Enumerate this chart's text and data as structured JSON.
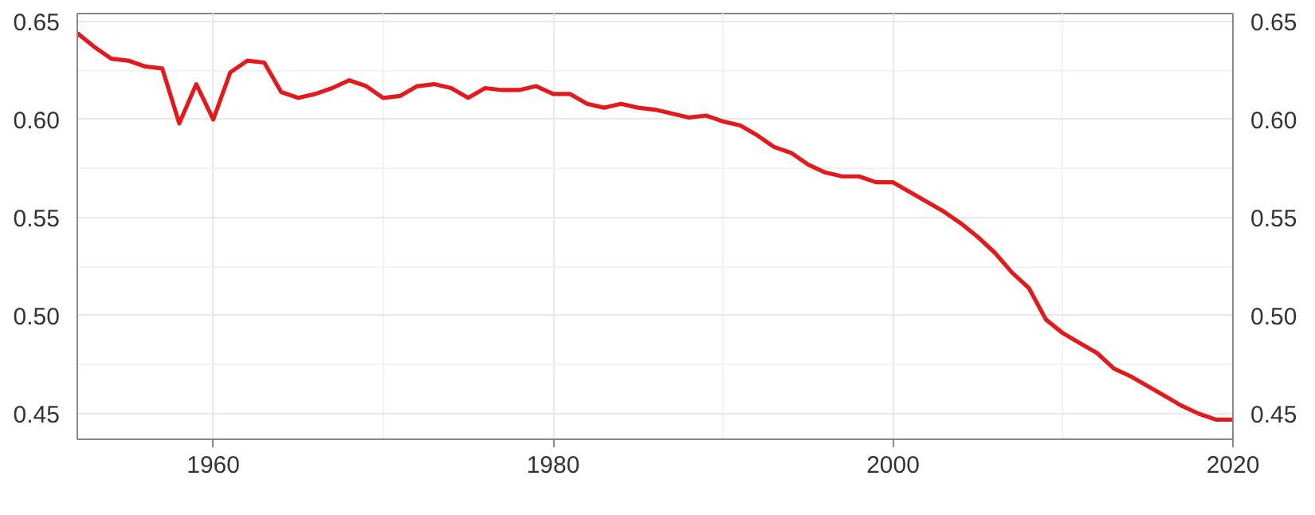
{
  "chart_data": {
    "type": "line",
    "x": [
      1952,
      1953,
      1954,
      1955,
      1956,
      1957,
      1958,
      1959,
      1960,
      1961,
      1962,
      1963,
      1964,
      1965,
      1966,
      1967,
      1968,
      1969,
      1970,
      1971,
      1972,
      1973,
      1974,
      1975,
      1976,
      1977,
      1978,
      1979,
      1980,
      1981,
      1982,
      1983,
      1984,
      1985,
      1986,
      1987,
      1988,
      1989,
      1990,
      1991,
      1992,
      1993,
      1994,
      1995,
      1996,
      1997,
      1998,
      1999,
      2000,
      2001,
      2002,
      2003,
      2004,
      2005,
      2006,
      2007,
      2008,
      2009,
      2010,
      2011,
      2012,
      2013,
      2014,
      2015,
      2016,
      2017,
      2018,
      2019,
      2020
    ],
    "series": [
      {
        "color": "#e31a1c",
        "values": [
          0.644,
          0.637,
          0.631,
          0.63,
          0.627,
          0.626,
          0.598,
          0.618,
          0.6,
          0.624,
          0.63,
          0.629,
          0.614,
          0.611,
          0.613,
          0.616,
          0.62,
          0.617,
          0.611,
          0.612,
          0.617,
          0.618,
          0.616,
          0.611,
          0.616,
          0.615,
          0.615,
          0.617,
          0.613,
          0.613,
          0.608,
          0.606,
          0.608,
          0.606,
          0.605,
          0.603,
          0.601,
          0.602,
          0.599,
          0.597,
          0.592,
          0.586,
          0.583,
          0.577,
          0.573,
          0.571,
          0.571,
          0.568,
          0.568,
          0.563,
          0.558,
          0.553,
          0.547,
          0.54,
          0.532,
          0.522,
          0.514,
          0.498,
          0.491,
          0.486,
          0.481,
          0.473,
          0.469,
          0.464,
          0.459,
          0.454,
          0.45,
          0.447,
          0.447
        ]
      }
    ],
    "xlim": [
      1952,
      2020
    ],
    "ylim": [
      0.437,
      0.654
    ],
    "xticks": [
      1960,
      {
        "value": 1970,
        "label": null
      },
      1980,
      {
        "value": 1990,
        "label": null
      },
      2000,
      {
        "value": 2010,
        "label": null
      },
      2020
    ],
    "yticks": [
      0.45,
      {
        "value": 0.475,
        "label": null
      },
      {
        "value": 0.5,
        "label": "0.50"
      },
      {
        "value": 0.525,
        "label": null
      },
      0.55,
      {
        "value": 0.575,
        "label": null
      },
      {
        "value": 0.6,
        "label": "0.60"
      },
      {
        "value": 0.625,
        "label": null
      },
      0.65
    ],
    "y2lim": [
      0.437,
      0.654
    ],
    "y2ticks": [
      0.45,
      {
        "value": 0.5,
        "label": "0.50"
      },
      0.55,
      {
        "value": 0.6,
        "label": "0.60"
      },
      0.65
    ],
    "grid": true,
    "marker": "none",
    "line_style": "solid"
  }
}
